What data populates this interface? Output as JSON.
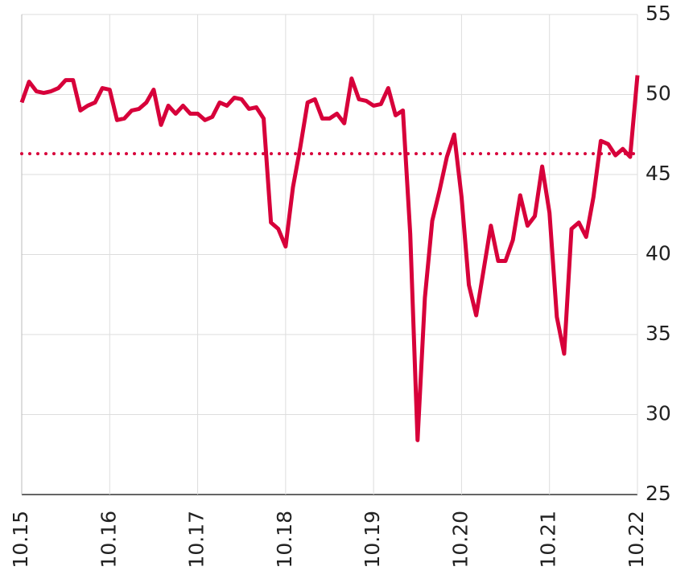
{
  "chart_data": {
    "type": "line",
    "x": [
      0,
      2,
      4,
      6,
      8,
      10,
      12,
      14,
      16,
      18,
      20,
      22,
      24,
      26,
      28,
      30,
      32,
      34,
      36,
      38,
      40,
      42,
      44,
      46,
      48,
      50,
      52,
      54,
      56,
      58,
      60,
      62,
      64,
      66,
      68,
      70,
      72,
      74,
      76,
      78,
      80,
      82,
      84,
      86,
      88,
      90,
      92,
      94,
      96,
      98,
      100,
      102,
      104,
      106,
      108,
      110,
      112,
      114,
      116,
      118,
      120,
      122,
      124,
      126,
      128,
      130,
      132,
      134,
      136,
      138,
      140,
      142,
      144,
      146,
      148,
      150,
      152,
      154,
      156,
      158,
      160,
      162,
      164,
      166,
      168
    ],
    "series": [
      {
        "color": "#d7003a",
        "values": [
          49.5,
          50.8,
          50.2,
          50.1,
          50.2,
          50.4,
          50.9,
          50.9,
          49.0,
          49.3,
          49.5,
          50.4,
          50.3,
          48.4,
          48.5,
          49.0,
          49.1,
          49.5,
          50.3,
          48.1,
          49.3,
          48.8,
          49.3,
          48.8,
          48.8,
          48.4,
          48.6,
          49.5,
          49.3,
          49.8,
          49.7,
          49.1,
          49.2,
          48.5,
          42.0,
          41.6,
          40.5,
          44.2,
          46.7,
          49.5,
          49.7,
          48.5,
          48.5,
          48.8,
          48.2,
          51.0,
          49.7,
          49.6,
          49.3,
          49.4,
          50.4,
          48.7,
          49.0,
          41.3,
          28.4,
          37.3,
          42.1,
          44.0,
          46.1,
          47.5,
          43.6,
          38.1,
          36.2,
          39.0,
          41.8,
          39.6,
          39.6,
          40.9,
          43.7,
          41.8,
          42.4,
          45.5,
          42.6,
          36.1,
          33.8,
          41.6,
          42.0,
          41.1,
          43.6,
          47.1,
          46.9,
          46.2,
          46.6,
          46.1,
          51.2
        ]
      }
    ],
    "reference_line": 46.3,
    "xlim": [
      0,
      168
    ],
    "xticks": [
      {
        "value": 0,
        "label": "10.15"
      },
      {
        "value": 24,
        "label": "10.16"
      },
      {
        "value": 48,
        "label": "10.17"
      },
      {
        "value": 72,
        "label": "10.18"
      },
      {
        "value": 96,
        "label": "10.19"
      },
      {
        "value": 120,
        "label": "10.20"
      },
      {
        "value": 144,
        "label": "10.21"
      },
      {
        "value": 168,
        "label": "10.22"
      }
    ],
    "ylim": [
      25,
      55
    ],
    "yticks": [
      25,
      30,
      35,
      40,
      45,
      50,
      55
    ],
    "grid": true
  }
}
